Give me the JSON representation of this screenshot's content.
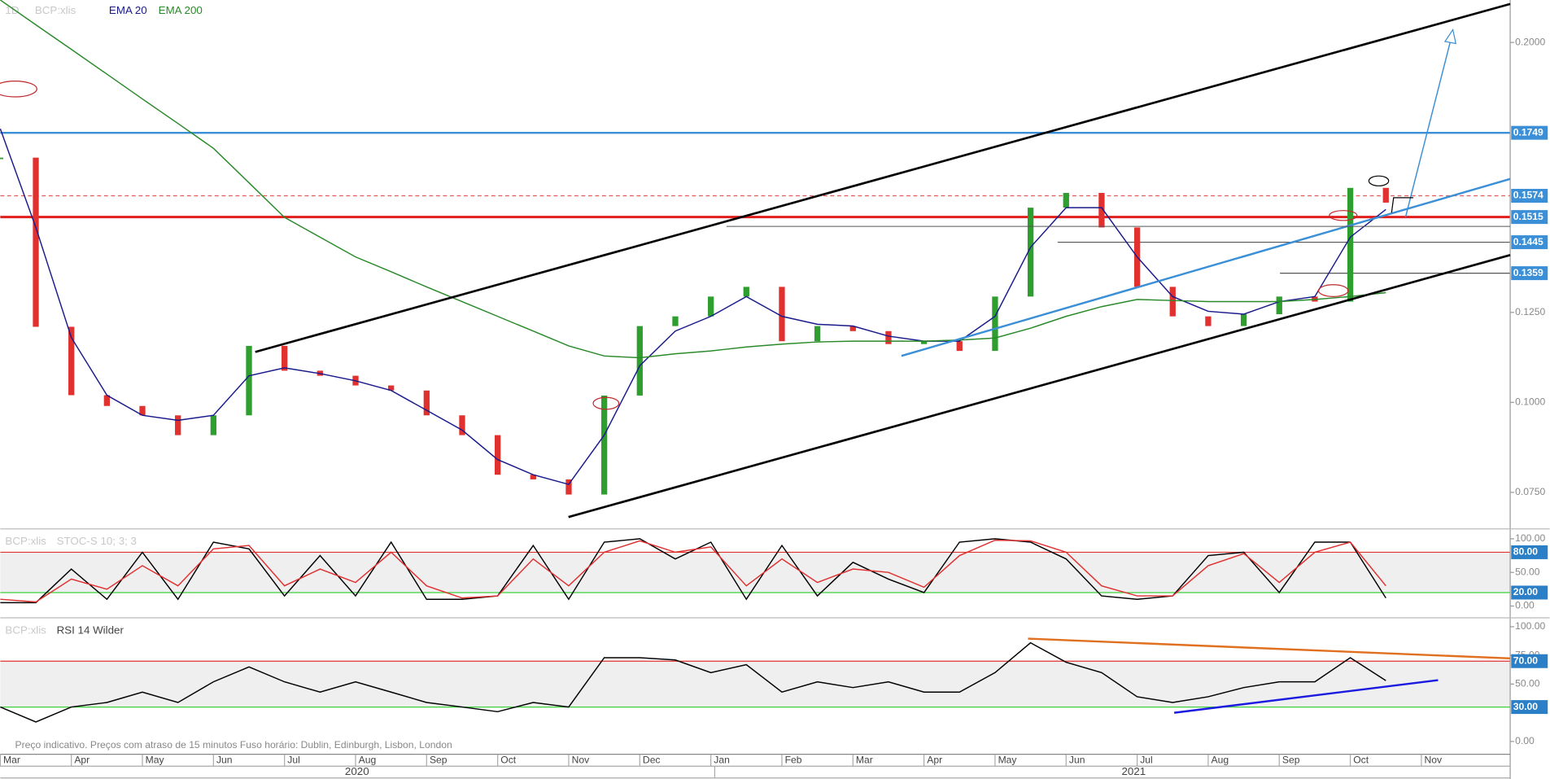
{
  "interval": "1D",
  "footer": "Preço indicativo. Preços com atraso de 15 minutos    Fuso horário: Dublin, Edinburgh, Lisbon, London",
  "time_axis": {
    "xlim": [
      0,
      21.25
    ],
    "x": [
      0,
      0.5,
      1,
      1.5,
      2,
      2.5,
      3,
      3.5,
      4,
      4.5,
      5,
      5.5,
      6,
      6.5,
      7,
      7.5,
      8,
      8.5,
      9,
      9.5,
      10,
      10.5,
      11,
      11.5,
      12,
      12.5,
      13,
      13.5,
      14,
      14.5,
      15,
      15.5,
      16,
      16.5,
      17,
      17.5,
      18,
      18.5,
      19,
      19.5
    ],
    "months": [
      "Mar",
      "Apr",
      "May",
      "Jun",
      "Jul",
      "Aug",
      "Sep",
      "Oct",
      "Nov",
      "Dec",
      "Jan",
      "Feb",
      "Mar",
      "Apr",
      "May",
      "Jun",
      "Jul",
      "Aug",
      "Sep",
      "Oct",
      "Nov"
    ],
    "years": [
      "2020",
      "2021"
    ]
  },
  "chart_data": [
    {
      "type": "candlestick",
      "ylim": [
        0.0654,
        0.2118
      ],
      "yticks": [
        {
          "value": 0.2,
          "label": "0.2000"
        },
        {
          "value": 0.125,
          "label": "0.1250"
        },
        {
          "value": 0.1,
          "label": "0.1000"
        },
        {
          "value": 0.075,
          "label": "0.0750"
        }
      ],
      "levels": [
        {
          "value": 0.1749,
          "label": "0.1749",
          "color": "#3a8fd6"
        },
        {
          "value": 0.1574,
          "label": "0.1574",
          "color": "#e05a5a"
        },
        {
          "value": 0.1515,
          "label": "0.1515",
          "color": "#e01e1e"
        },
        {
          "value": 0.1445,
          "label": "0.1445",
          "color": "#555555"
        },
        {
          "value": 0.1359,
          "label": "0.1359",
          "color": "#555555"
        }
      ],
      "up_color": "#2e9e2e",
      "down_color": "#e0312f",
      "series": [
        {
          "name": "BCP:xlis",
          "color": "#c8c8c8",
          "values": [
            0.168,
            0.121,
            0.102,
            0.099,
            0.0964,
            0.0909,
            0.0964,
            0.1157,
            0.1088,
            0.1074,
            0.1047,
            0.1033,
            0.0964,
            0.0909,
            0.0799,
            0.0786,
            0.0744,
            0.1019,
            0.1212,
            0.1239,
            0.1294,
            0.1321,
            0.117,
            0.1212,
            0.1198,
            0.1162,
            0.117,
            0.1143,
            0.1294,
            0.1541,
            0.1582,
            0.1486,
            0.1321,
            0.1239,
            0.1212,
            0.1245,
            0.1294,
            0.128,
            0.1596,
            0.1555
          ]
        },
        {
          "name": "EMA 20",
          "color": "#1a1a8c",
          "values": [
            0.176,
            0.1486,
            0.118,
            0.102,
            0.0964,
            0.095,
            0.0964,
            0.1074,
            0.1096,
            0.108,
            0.106,
            0.1033,
            0.0978,
            0.0923,
            0.0841,
            0.0799,
            0.0772,
            0.0909,
            0.1102,
            0.1198,
            0.1239,
            0.1294,
            0.1239,
            0.1217,
            0.1212,
            0.1184,
            0.117,
            0.117,
            0.1239,
            0.1431,
            0.1541,
            0.1541,
            0.1404,
            0.1294,
            0.1253,
            0.1245,
            0.128,
            0.1294,
            0.1459,
            0.1536
          ]
        },
        {
          "name": "EMA 200",
          "color": "#2a8a2a",
          "values": [
            0.2118,
            0.2049,
            0.1981,
            0.1912,
            0.1843,
            0.1775,
            0.1706,
            0.161,
            0.1514,
            0.1459,
            0.1404,
            0.1363,
            0.1321,
            0.128,
            0.1239,
            0.1198,
            0.1157,
            0.1129,
            0.1124,
            0.1135,
            0.1143,
            0.1154,
            0.1162,
            0.1168,
            0.117,
            0.117,
            0.117,
            0.1173,
            0.1179,
            0.1206,
            0.1239,
            0.1266,
            0.1286,
            0.1283,
            0.128,
            0.128,
            0.128,
            0.1286,
            0.1294,
            0.1305
          ]
        }
      ]
    },
    {
      "type": "line",
      "symbol": "BCP:xlis",
      "title": "STOC-S 10; 3; 3",
      "ylim": [
        -13.2,
        111.8
      ],
      "yticks": [
        {
          "value": 100,
          "label": "100.00"
        },
        {
          "value": 50,
          "label": "50.00"
        },
        {
          "value": 0,
          "label": "0.00"
        }
      ],
      "levels": [
        {
          "value": 80,
          "label": "80.00",
          "color": "#e03030"
        },
        {
          "value": 20,
          "label": "20.00",
          "color": "#3ccf3c"
        }
      ],
      "series": [
        {
          "color": "#000000",
          "values": [
            5,
            5,
            55,
            10,
            80,
            10,
            95,
            85,
            15,
            75,
            15,
            95,
            10,
            10,
            15,
            90,
            10,
            95,
            100,
            70,
            95,
            10,
            90,
            15,
            65,
            40,
            20,
            95,
            100,
            95,
            70,
            15,
            10,
            15,
            75,
            80,
            20,
            95,
            95,
            12
          ]
        },
        {
          "color": "#e03030",
          "values": [
            10,
            6,
            40,
            25,
            60,
            30,
            85,
            90,
            30,
            55,
            35,
            80,
            30,
            12,
            15,
            70,
            30,
            80,
            97,
            80,
            88,
            30,
            70,
            35,
            55,
            50,
            28,
            75,
            98,
            97,
            80,
            30,
            15,
            15,
            60,
            78,
            35,
            80,
            95,
            30
          ]
        }
      ]
    },
    {
      "type": "line",
      "symbol": "BCP:xlis",
      "title": "RSI 14 Wilder",
      "ylim": [
        -12.9,
        106
      ],
      "yticks": [
        {
          "value": 100,
          "label": "100.00"
        },
        {
          "value": 75,
          "label": "75.00"
        },
        {
          "value": 50,
          "label": "50.00"
        },
        {
          "value": 0,
          "label": "0.00"
        }
      ],
      "levels": [
        {
          "value": 70,
          "label": "70.00",
          "color": "#e03030"
        },
        {
          "value": 30,
          "label": "30.00",
          "color": "#3ccf3c"
        }
      ],
      "series": [
        {
          "color": "#000000",
          "values": [
            30,
            17,
            30,
            34,
            43,
            34,
            52,
            65,
            52,
            43,
            52,
            43,
            34,
            30,
            26,
            34,
            30,
            73,
            73,
            71,
            60,
            67,
            43,
            52,
            47,
            52,
            43,
            43,
            60,
            86,
            69,
            60,
            39,
            34,
            39,
            47,
            52,
            52,
            73,
            53
          ]
        }
      ]
    }
  ]
}
